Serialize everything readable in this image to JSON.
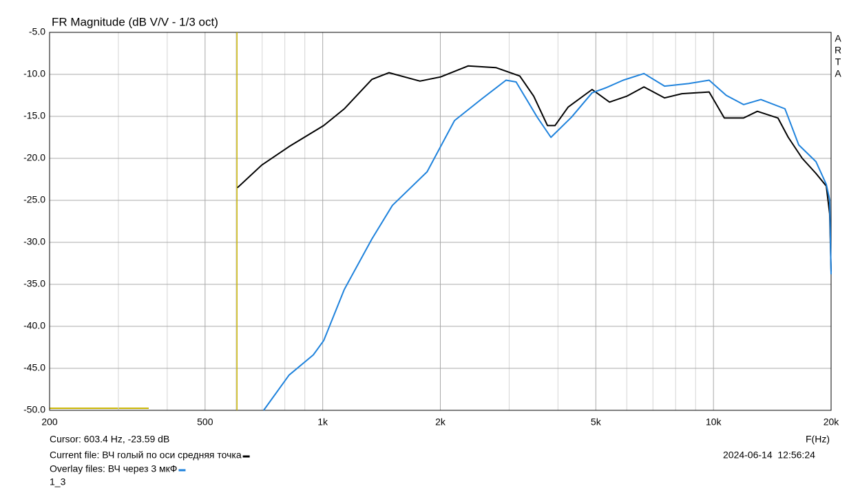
{
  "chart_data": {
    "type": "line",
    "title": "FR Magnitude (dB V/V - 1/3 oct)",
    "side_label": "ARTA",
    "x_axis_label": "F(Hz)",
    "xscale": "log",
    "xlim": [
      200,
      20000
    ],
    "ylim": [
      -50,
      -5
    ],
    "xticks": [
      200,
      500,
      {
        "value": 1000,
        "label": "1k"
      },
      {
        "value": 2000,
        "label": "2k"
      },
      {
        "value": 5000,
        "label": "5k"
      },
      {
        "value": 10000,
        "label": "10k"
      },
      {
        "value": 20000,
        "label": "20k"
      }
    ],
    "minor_xticks": [
      300,
      400,
      600,
      700,
      800,
      900,
      3000,
      4000,
      6000,
      7000,
      8000,
      9000
    ],
    "yticks": [
      {
        "value": -5,
        "label": "-5.0"
      },
      {
        "value": -10,
        "label": "-10.0"
      },
      {
        "value": -15,
        "label": "-15.0"
      },
      {
        "value": -20,
        "label": "-20.0"
      },
      {
        "value": -25,
        "label": "-25.0"
      },
      {
        "value": -30,
        "label": "-30.0"
      },
      {
        "value": -35,
        "label": "-35.0"
      },
      {
        "value": -40,
        "label": "-40.0"
      },
      {
        "value": -45,
        "label": "-45.0"
      },
      {
        "value": -50,
        "label": "-50.0"
      }
    ],
    "grid": true,
    "cursor": {
      "label": "Cursor: 603.4 Hz, -23.59 dB",
      "x": 603.4,
      "color": "#c8b400"
    },
    "series": [
      {
        "name": "Current file: ВЧ голый по оси средняя точка",
        "color": "#000000",
        "x": [
          605,
          698,
          820,
          1006,
          1136,
          1336,
          1478,
          1774,
          2004,
          2355,
          2774,
          3194,
          3467,
          3760,
          3931,
          4247,
          4892,
          5419,
          6002,
          6640,
          7497,
          8300,
          9750,
          10660,
          11940,
          12950,
          14620,
          15540,
          16870,
          18300,
          19440,
          19830,
          20000
        ],
        "values": [
          -23.5,
          -20.8,
          -18.6,
          -16.1,
          -14.1,
          -10.6,
          -9.8,
          -10.8,
          -10.3,
          -9.0,
          -9.2,
          -10.2,
          -12.6,
          -16.1,
          -16.1,
          -13.9,
          -11.8,
          -13.3,
          -12.6,
          -11.5,
          -12.8,
          -12.3,
          -12.1,
          -15.2,
          -15.2,
          -14.4,
          -15.2,
          -17.5,
          -20.0,
          -21.8,
          -23.3,
          -26.6,
          -33.5
        ]
      },
      {
        "name": "Overlay files: ВЧ через 3 мкФ",
        "color": "#1e82dc",
        "x": [
          706,
          820,
          946,
          1006,
          1136,
          1336,
          1508,
          1850,
          2174,
          2556,
          2945,
          3125,
          3539,
          3838,
          4332,
          4892,
          5307,
          5872,
          6640,
          7497,
          8634,
          9750,
          10780,
          11940,
          13220,
          15240,
          16530,
          18300,
          19440,
          19830,
          20000
        ],
        "values": [
          -50,
          -45.8,
          -43.4,
          -41.7,
          -35.6,
          -29.6,
          -25.6,
          -21.6,
          -15.5,
          -12.9,
          -10.7,
          -10.9,
          -15.1,
          -17.5,
          -15.1,
          -12.2,
          -11.6,
          -10.7,
          -9.9,
          -11.4,
          -11.1,
          -10.7,
          -12.5,
          -13.6,
          -13.0,
          -14.1,
          -18.4,
          -20.4,
          -23.1,
          -24.9,
          -33.8
        ]
      }
    ],
    "footer_note": "1_3",
    "timestamp": "2024-06-14  12:56:24"
  }
}
